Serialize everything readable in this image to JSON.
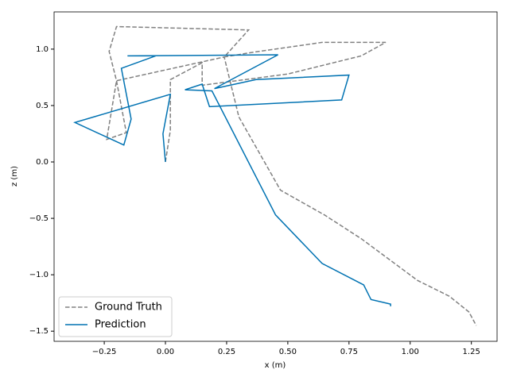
{
  "chart_data": {
    "type": "line",
    "x_label": "x (m)",
    "y_label": "z (m)",
    "xlim": [
      -0.455,
      1.355
    ],
    "ylim": [
      -1.59,
      1.33
    ],
    "xticks": [
      {
        "value": -0.25,
        "label": "−0.25"
      },
      {
        "value": 0,
        "label": "0.00"
      },
      {
        "value": 0.25,
        "label": "0.25"
      },
      {
        "value": 0.5,
        "label": "0.50"
      },
      {
        "value": 0.75,
        "label": "0.75"
      },
      {
        "value": 1,
        "label": "1.00"
      },
      {
        "value": 1.25,
        "label": "1.25"
      }
    ],
    "yticks": [
      {
        "value": -1.5,
        "label": "−1.5"
      },
      {
        "value": -1,
        "label": "−1.0"
      },
      {
        "value": -0.5,
        "label": "−0.5"
      },
      {
        "value": 0,
        "label": "0.0"
      },
      0.5,
      {
        "value": 1,
        "label": "1.0"
      }
    ],
    "legend": "lower left",
    "series": [
      {
        "name": "Ground Truth",
        "color": "#808080",
        "dashed": true,
        "x": [
          0,
          0.02,
          0.02,
          0.15,
          0.15,
          0.5,
          0.8,
          0.9,
          0.64,
          0.35,
          0.24,
          0.34,
          -0.2,
          -0.23,
          -0.2,
          -0.16,
          -0.24,
          -0.2,
          0.24,
          0.3,
          0.47,
          0.65,
          0.8,
          1.03,
          1.16,
          1.24,
          1.27
        ],
        "values": [
          0,
          0.28,
          0.73,
          0.88,
          0.68,
          0.78,
          0.94,
          1.06,
          1.06,
          0.97,
          0.93,
          1.17,
          1.2,
          0.98,
          0.72,
          0.26,
          0.2,
          0.72,
          0.93,
          0.4,
          -0.25,
          -0.47,
          -0.68,
          -1.05,
          -1.19,
          -1.33,
          -1.45
        ]
      },
      {
        "name": "Prediction",
        "color": "#0072b2",
        "dashed": false,
        "x": [
          0,
          -0.01,
          0.02,
          -0.37,
          -0.17,
          -0.14,
          -0.18,
          -0.04,
          -0.155,
          0.46,
          0.2,
          0.37,
          0.75,
          0.72,
          0.18,
          0.15,
          0.08,
          0.19,
          0.45,
          0.64,
          0.81,
          0.84,
          0.92,
          0.92
        ],
        "values": [
          0,
          0.25,
          0.6,
          0.35,
          0.15,
          0.38,
          0.83,
          0.94,
          0.94,
          0.95,
          0.65,
          0.73,
          0.77,
          0.55,
          0.49,
          0.69,
          0.64,
          0.63,
          -0.47,
          -0.9,
          -1.09,
          -1.22,
          -1.26,
          -1.28
        ]
      }
    ]
  }
}
